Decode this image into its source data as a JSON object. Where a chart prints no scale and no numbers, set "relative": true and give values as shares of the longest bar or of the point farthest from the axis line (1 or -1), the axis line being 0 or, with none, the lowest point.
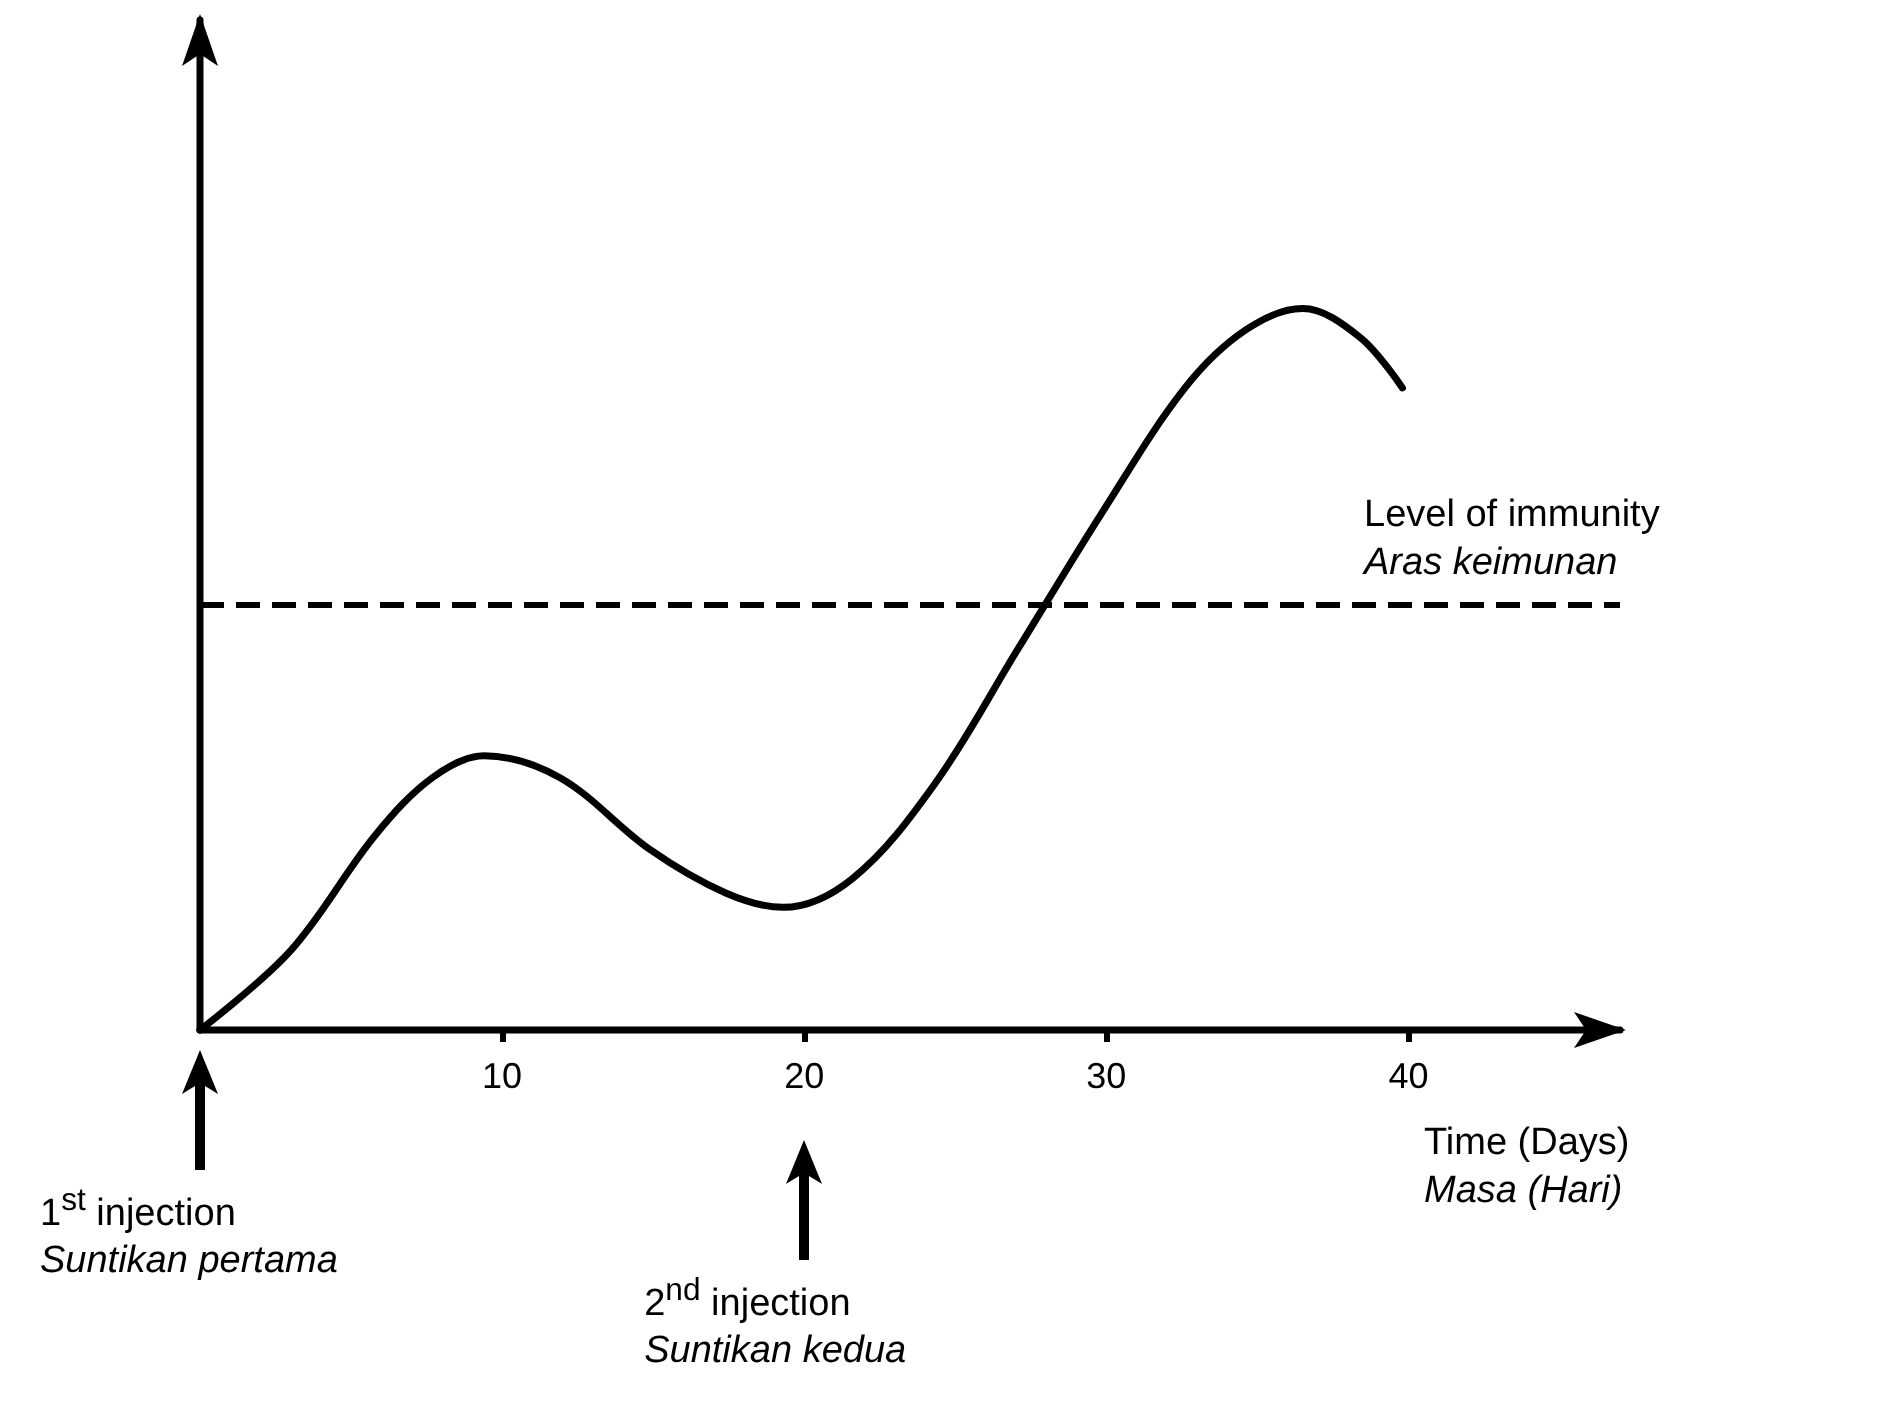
{
  "chart_data": {
    "type": "line",
    "relative": true,
    "xlabel": "Time (Days)\nMasa (Hari)",
    "x": [
      0,
      3.0,
      5.8,
      7.7,
      9.4,
      11.9,
      14.9,
      17.4,
      19.3,
      21.6,
      24.3,
      27.1,
      29.9,
      32.6,
      34.6,
      36.5,
      38.4,
      39.8
    ],
    "series": [
      {
        "color": "#000000",
        "values": [
          0,
          0.11,
          0.27,
          0.35,
          0.38,
          0.35,
          0.25,
          0.19,
          0.17,
          0.21,
          0.34,
          0.53,
          0.72,
          0.89,
          0.97,
          1.0,
          0.96,
          0.89
        ]
      }
    ],
    "xlim": [
      0,
      47
    ],
    "xticks": [
      10,
      20,
      30,
      40
    ],
    "ref_lines": [
      {
        "axis": "y",
        "value": 0.59,
        "label": "Level of immunity\nAras keimunan",
        "line_style": "dashed",
        "color": "#000000"
      }
    ],
    "annotations": [
      "1$^{st}$ injection\nSuntikan pertama",
      "2$^{nd}$ injection\nSuntikan kedua"
    ],
    "marker": "none",
    "line_style": "solid",
    "grid": false
  }
}
